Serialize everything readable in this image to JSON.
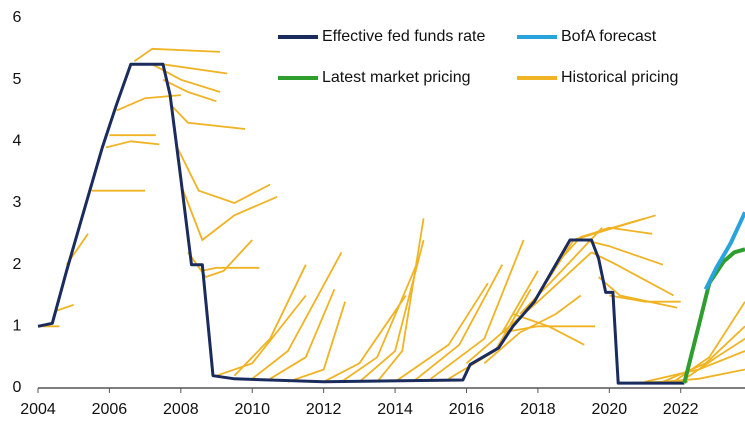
{
  "chart_data": {
    "type": "line",
    "xlim": [
      2004,
      2023.8
    ],
    "xticks": [
      2004,
      2006,
      2008,
      2010,
      2012,
      2014,
      2016,
      2018,
      2020,
      2022
    ],
    "ylim": [
      0,
      6
    ],
    "yticks": [
      0,
      1,
      2,
      3,
      4,
      5,
      6
    ],
    "series": [
      {
        "name": "Effective fed funds rate",
        "color": "#1a2b5e",
        "x": [
          2004,
          2004.4,
          2004.8,
          2005.3,
          2005.8,
          2006.2,
          2006.6,
          2007.5,
          2007.7,
          2008.0,
          2008.3,
          2008.6,
          2008.9,
          2009.5,
          2012,
          2015.9,
          2016.1,
          2016.9,
          2017.3,
          2017.9,
          2018.4,
          2018.9,
          2019.5,
          2019.7,
          2019.9,
          2020.1,
          2020.25,
          2022.1
        ],
        "values": [
          1.0,
          1.05,
          1.9,
          2.9,
          3.9,
          4.6,
          5.25,
          5.25,
          4.75,
          3.4,
          2.0,
          2.0,
          0.2,
          0.15,
          0.1,
          0.13,
          0.38,
          0.65,
          1.0,
          1.4,
          1.9,
          2.4,
          2.4,
          2.1,
          1.55,
          1.55,
          0.08,
          0.08
        ]
      },
      {
        "name": "BofA forecast",
        "color": "#29a3dc",
        "x": [
          2022.7,
          2023.0,
          2023.4,
          2023.8
        ],
        "values": [
          1.6,
          1.95,
          2.35,
          2.85
        ]
      },
      {
        "name": "Latest market pricing",
        "color": "#2e9e2e",
        "x": [
          2022.1,
          2022.5,
          2022.8,
          2023.2,
          2023.5,
          2023.8
        ],
        "values": [
          0.08,
          1.0,
          1.7,
          2.05,
          2.2,
          2.25
        ]
      },
      {
        "name": "Historical pricing",
        "color": "#f0b323",
        "curves": [
          {
            "x": [
              2004,
              2004.6
            ],
            "values": [
              1.0,
              1.0
            ]
          },
          {
            "x": [
              2004.5,
              2005.0
            ],
            "values": [
              1.25,
              1.35
            ]
          },
          {
            "x": [
              2004.8,
              2005.4
            ],
            "values": [
              2.0,
              2.5
            ]
          },
          {
            "x": [
              2005.5,
              2006.3,
              2007.0
            ],
            "values": [
              3.2,
              3.2,
              3.2
            ]
          },
          {
            "x": [
              2005.9,
              2006.6,
              2007.4
            ],
            "values": [
              3.9,
              4.0,
              3.95
            ]
          },
          {
            "x": [
              2006.0,
              2006.6,
              2007.3
            ],
            "values": [
              4.1,
              4.1,
              4.1
            ]
          },
          {
            "x": [
              2006.2,
              2007.0,
              2008.0
            ],
            "values": [
              4.5,
              4.7,
              4.75
            ]
          },
          {
            "x": [
              2006.7,
              2007.2,
              2009.1
            ],
            "values": [
              5.3,
              5.5,
              5.45
            ]
          },
          {
            "x": [
              2006.8,
              2007.5,
              2009.3
            ],
            "values": [
              5.25,
              5.25,
              5.1
            ]
          },
          {
            "x": [
              2007.2,
              2008.0,
              2009.1
            ],
            "values": [
              5.25,
              5.0,
              4.8
            ]
          },
          {
            "x": [
              2007.5,
              2008.2,
              2009.0
            ],
            "values": [
              5.0,
              4.8,
              4.65
            ]
          },
          {
            "x": [
              2007.7,
              2008.2,
              2009.8
            ],
            "values": [
              4.6,
              4.3,
              4.2
            ]
          },
          {
            "x": [
              2007.9,
              2008.5,
              2009.5,
              2010.5
            ],
            "values": [
              3.9,
              3.2,
              3.0,
              3.3
            ]
          },
          {
            "x": [
              2008.0,
              2008.6,
              2009.5,
              2010.7
            ],
            "values": [
              3.3,
              2.4,
              2.8,
              3.1
            ]
          },
          {
            "x": [
              2008.2,
              2008.7,
              2009.2,
              2010.0
            ],
            "values": [
              2.2,
              1.8,
              1.9,
              2.4
            ]
          },
          {
            "x": [
              2008.6,
              2009.0,
              2010.2
            ],
            "values": [
              1.9,
              1.95,
              1.95
            ]
          },
          {
            "x": [
              2009.0,
              2010.0,
              2011.5
            ],
            "values": [
              0.2,
              0.4,
              1.5
            ]
          },
          {
            "x": [
              2009.5,
              2010.5,
              2011.5
            ],
            "values": [
              0.2,
              0.8,
              2.0
            ]
          },
          {
            "x": [
              2010.0,
              2011.0,
              2012.5
            ],
            "values": [
              0.15,
              0.6,
              2.2
            ]
          },
          {
            "x": [
              2010.5,
              2011.5,
              2012.3
            ],
            "values": [
              0.15,
              0.5,
              1.6
            ]
          },
          {
            "x": [
              2011.0,
              2012.0,
              2012.6
            ],
            "values": [
              0.1,
              0.3,
              1.4
            ]
          },
          {
            "x": [
              2012.0,
              2013.0,
              2014.3
            ],
            "values": [
              0.1,
              0.4,
              1.5
            ]
          },
          {
            "x": [
              2012.5,
              2013.5,
              2014.6
            ],
            "values": [
              0.1,
              0.5,
              2.0
            ]
          },
          {
            "x": [
              2013.0,
              2014.0,
              2014.8
            ],
            "values": [
              0.1,
              0.6,
              2.4
            ]
          },
          {
            "x": [
              2013.5,
              2014.2,
              2014.8
            ],
            "values": [
              0.1,
              0.6,
              2.75
            ]
          },
          {
            "x": [
              2014.0,
              2015.5,
              2016.6
            ],
            "values": [
              0.1,
              0.7,
              1.7
            ]
          },
          {
            "x": [
              2014.5,
              2015.8,
              2017.0
            ],
            "values": [
              0.1,
              0.7,
              2.0
            ]
          },
          {
            "x": [
              2015.0,
              2016.5,
              2017.6
            ],
            "values": [
              0.15,
              0.8,
              2.4
            ]
          },
          {
            "x": [
              2015.5,
              2016.8,
              2017.8
            ],
            "values": [
              0.15,
              0.6,
              1.6
            ]
          },
          {
            "x": [
              2016.0,
              2017.0,
              2018.0
            ],
            "values": [
              0.4,
              0.9,
              1.9
            ]
          },
          {
            "x": [
              2016.5,
              2017.5,
              2018.5,
              2019.2
            ],
            "values": [
              0.4,
              0.9,
              1.2,
              1.5
            ]
          },
          {
            "x": [
              2017.0,
              2018.0,
              2019.6
            ],
            "values": [
              0.9,
              1.0,
              1.0
            ]
          },
          {
            "x": [
              2017.3,
              2018.3,
              2019.3
            ],
            "values": [
              1.2,
              1.0,
              0.7
            ]
          },
          {
            "x": [
              2017.0,
              2018.0,
              2019.5
            ],
            "values": [
              0.9,
              1.4,
              2.2
            ]
          },
          {
            "x": [
              2017.5,
              2018.5,
              2019.8
            ],
            "values": [
              1.2,
              1.8,
              2.6
            ]
          },
          {
            "x": [
              2018.0,
              2019.0,
              2021.3
            ],
            "values": [
              1.5,
              2.4,
              2.8
            ]
          },
          {
            "x": [
              2018.5,
              2019.2,
              2021.0
            ],
            "values": [
              2.0,
              2.45,
              2.75
            ]
          },
          {
            "x": [
              2019.0,
              2020.0,
              2021.2
            ],
            "values": [
              2.4,
              2.6,
              2.5
            ]
          },
          {
            "x": [
              2019.3,
              2020.0,
              2021.5
            ],
            "values": [
              2.4,
              2.3,
              2.0
            ]
          },
          {
            "x": [
              2019.5,
              2020.2,
              2021.8
            ],
            "values": [
              2.2,
              2.0,
              1.5
            ]
          },
          {
            "x": [
              2019.7,
              2020.3,
              2021.9
            ],
            "values": [
              1.8,
              1.5,
              1.3
            ]
          },
          {
            "x": [
              2020.0,
              2021.0,
              2022.0
            ],
            "values": [
              1.5,
              1.4,
              1.4
            ]
          },
          {
            "x": [
              2020.3,
              2021.5,
              2022.2
            ],
            "values": [
              0.08,
              0.1,
              0.1
            ]
          },
          {
            "x": [
              2021.0,
              2022.5,
              2023.8
            ],
            "values": [
              0.1,
              0.3,
              0.6
            ]
          },
          {
            "x": [
              2021.5,
              2022.7,
              2023.8
            ],
            "values": [
              0.1,
              0.4,
              1.0
            ]
          },
          {
            "x": [
              2021.8,
              2022.8,
              2023.8
            ],
            "values": [
              0.1,
              0.5,
              1.4
            ]
          },
          {
            "x": [
              2022.0,
              2023.0,
              2023.8
            ],
            "values": [
              0.1,
              0.5,
              0.8
            ]
          },
          {
            "x": [
              2021.5,
              2022.5,
              2023.8
            ],
            "values": [
              0.1,
              0.15,
              0.3
            ]
          }
        ]
      }
    ]
  }
}
